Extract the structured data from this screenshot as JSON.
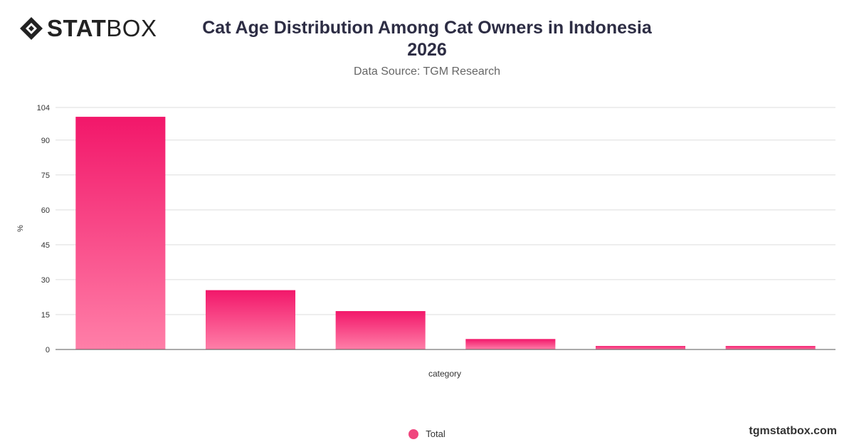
{
  "brand": {
    "name_bold": "STAT",
    "name_light": "BOX"
  },
  "header": {
    "title_line1": "Cat Age Distribution Among Cat Owners in Indonesia",
    "title_line2": "2026",
    "subtitle": "Data Source: TGM Research"
  },
  "colors": {
    "bar_top": "#f2176a",
    "bar_bottom": "#ff7fa8",
    "grid": "#dddddd",
    "axis": "#555555",
    "legend": "#f0467e"
  },
  "footer": {
    "site": "tgmstatbox.com"
  },
  "chart_data": {
    "type": "bar",
    "categories": [
      "",
      "",
      "",
      "",
      "",
      ""
    ],
    "series": [
      {
        "name": "Total",
        "values": [
          100,
          25.5,
          16.5,
          4.5,
          1.5,
          1.5
        ]
      }
    ],
    "xlabel": "category",
    "ylabel": "%",
    "ylim": [
      0,
      104
    ],
    "yticks": [
      0,
      15,
      30,
      45,
      60,
      75,
      90,
      104
    ],
    "grid": true,
    "legend_position": "bottom"
  }
}
